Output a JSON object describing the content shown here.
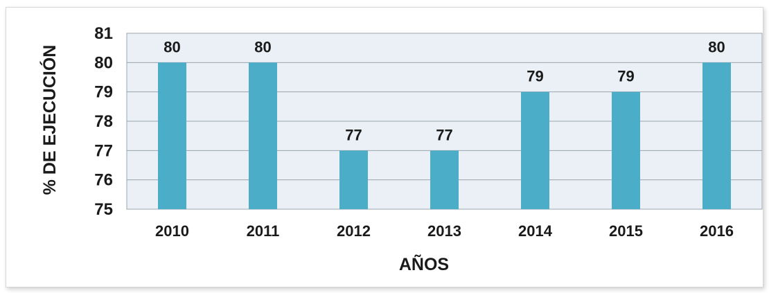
{
  "chart_data": {
    "type": "bar",
    "title": "",
    "xlabel": "AÑOS",
    "ylabel": "% DE EJECUCIÓN",
    "categories": [
      "2010",
      "2011",
      "2012",
      "2013",
      "2014",
      "2015",
      "2016"
    ],
    "series": [
      {
        "values": [
          80,
          80,
          77,
          77,
          79,
          79,
          80
        ]
      }
    ],
    "ylim": [
      75,
      81
    ],
    "yticks": [
      75,
      76,
      77,
      78,
      79,
      80,
      81
    ],
    "data_labels": true,
    "grid": true,
    "legend": "none",
    "colors": {
      "bar": "#4badc7",
      "plot_background": "#eaf0f6",
      "gridline": "#9aa4ad"
    }
  }
}
